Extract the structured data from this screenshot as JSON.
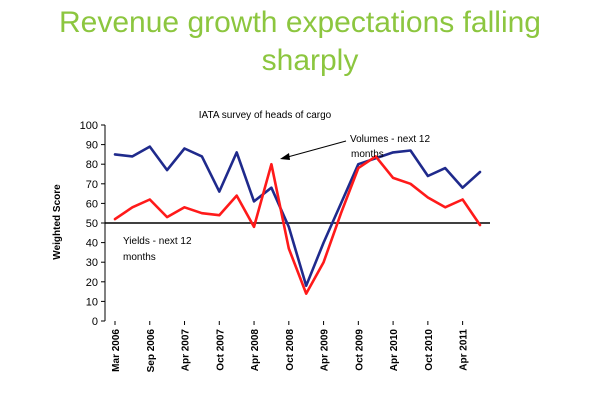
{
  "slide": {
    "title_line1": "Revenue growth expectations falling",
    "title_line2": "sharply"
  },
  "chart_data": {
    "type": "line",
    "title": "IATA survey of heads of cargo",
    "ylabel": "Weighted Score",
    "xlabel": "",
    "ylim": [
      0,
      100
    ],
    "y_ticks": [
      0,
      10,
      20,
      30,
      40,
      50,
      60,
      70,
      80,
      90,
      100
    ],
    "x_ticks": [
      "Mar 2006",
      "Sep 2006",
      "Apr 2007",
      "Oct 2007",
      "Apr 2008",
      "Oct 2008",
      "Apr 2009",
      "Oct 2009",
      "Apr 2010",
      "Oct 2010",
      "Apr 2011"
    ],
    "reference_line": 50,
    "grid": false,
    "series": [
      {
        "name": "Volumes - next 12 months",
        "color": "#1f2a8c",
        "values": [
          85,
          84,
          89,
          77,
          88,
          84,
          66,
          86,
          61,
          68,
          48,
          18,
          40,
          60,
          80,
          83,
          86,
          87,
          74,
          78,
          68,
          76
        ]
      },
      {
        "name": "Yields - next 12 months",
        "color": "#ff1a1a",
        "values": [
          52,
          58,
          62,
          53,
          58,
          55,
          54,
          64,
          48,
          80,
          37,
          14,
          30,
          55,
          78,
          84,
          73,
          70,
          63,
          58,
          62,
          49
        ]
      }
    ],
    "annotations": [
      {
        "text_line1": "Volumes - next 12",
        "text_line2": "months"
      },
      {
        "text_line1": "Yields - next 12",
        "text_line2": "months"
      }
    ]
  }
}
